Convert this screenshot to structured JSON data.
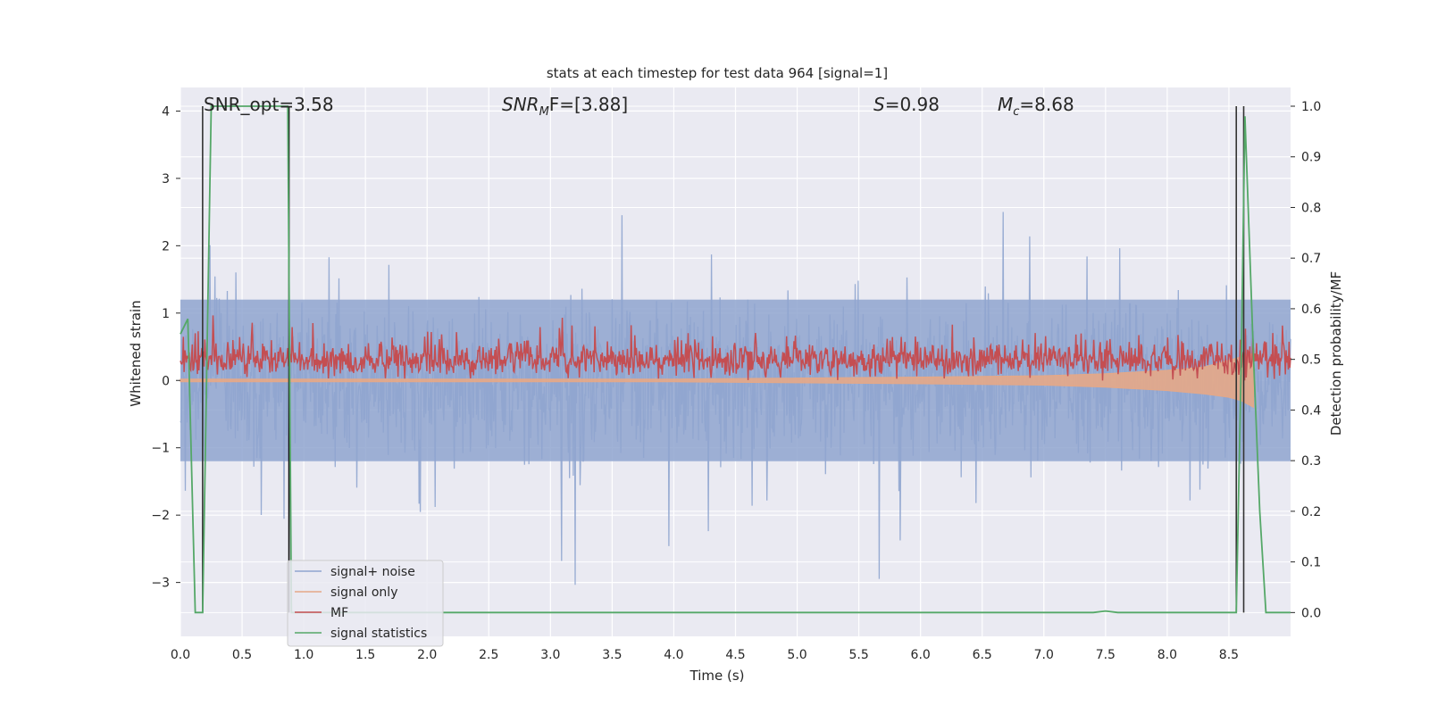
{
  "chart_data": {
    "type": "line",
    "title": "stats at each timestep for test data 964 [signal=1]",
    "xlabel": "Time (s)",
    "ylabel": "Whitened strain",
    "ylabel_right": "Detection probability/MF",
    "xlim": [
      0,
      9
    ],
    "ylim": [
      -3.8,
      4.35
    ],
    "ylim_right": [
      -0.047,
      1.037
    ],
    "x_ticks": [
      "0.0",
      "0.5",
      "1.0",
      "1.5",
      "2.0",
      "2.5",
      "3.0",
      "3.5",
      "4.0",
      "4.5",
      "5.0",
      "5.5",
      "6.0",
      "6.5",
      "7.0",
      "7.5",
      "8.0",
      "8.5"
    ],
    "y_ticks": [
      "4",
      "3",
      "2",
      "1",
      "0",
      "−1",
      "−2",
      "−3"
    ],
    "y_ticks_right": [
      "1.0",
      "0.9",
      "0.8",
      "0.7",
      "0.6",
      "0.5",
      "0.4",
      "0.3",
      "0.2",
      "0.1",
      "0.0"
    ],
    "grid": true,
    "legend_position": "lower-left",
    "annotations": [
      {
        "id": "snr-opt",
        "text": "SNR_opt=3.58"
      },
      {
        "id": "snr-mf",
        "text": "SNR",
        "sub": "M",
        "rest": "F=[3.88]"
      },
      {
        "id": "s-value",
        "text": "S",
        "rest": "=0.98"
      },
      {
        "id": "mc-value",
        "text": "M",
        "sub": "c",
        "rest": "=8.68"
      }
    ],
    "series": [
      {
        "name": "signal+ noise",
        "color": "#8fa5cf",
        "axis": "left",
        "description_range": [
          -3.5,
          4.0
        ]
      },
      {
        "name": "signal only",
        "color": "#e5a887",
        "axis": "left",
        "x": [
          0.0,
          2.0,
          4.0,
          6.0,
          7.0,
          7.5,
          8.0,
          8.3,
          8.5,
          8.6,
          8.7
        ],
        "y_low": [
          -0.02,
          -0.02,
          -0.02,
          -0.05,
          -0.07,
          -0.1,
          -0.15,
          -0.2,
          -0.25,
          -0.3,
          -0.4
        ],
        "y_high": [
          0.02,
          0.02,
          0.02,
          0.05,
          0.07,
          0.1,
          0.15,
          0.2,
          0.3,
          0.35,
          0.4
        ]
      },
      {
        "name": "MF",
        "color": "#c44e52",
        "axis": "left",
        "description_range": [
          0.0,
          1.0
        ]
      },
      {
        "name": "signal statistics",
        "color": "#55a868",
        "axis": "right",
        "x": [
          0.0,
          0.06,
          0.12,
          0.18,
          0.25,
          0.3,
          0.5,
          0.7,
          0.87,
          0.9,
          1.0,
          2.0,
          3.0,
          4.0,
          5.0,
          6.0,
          7.0,
          7.4,
          7.5,
          7.6,
          8.0,
          8.5,
          8.56,
          8.6,
          8.63,
          8.7,
          8.75,
          8.8,
          9.0
        ],
        "y": [
          0.55,
          0.58,
          0.0,
          0.0,
          1.0,
          1.0,
          1.0,
          1.0,
          1.0,
          0.0,
          0.0,
          0.0,
          0.0,
          0.0,
          0.0,
          0.0,
          0.0,
          0.0,
          0.003,
          0.0,
          0.0,
          0.0,
          0.0,
          0.5,
          0.98,
          0.5,
          0.2,
          0.0,
          0.0
        ]
      }
    ],
    "vertical_lines": [
      {
        "x": 0.18,
        "color": "#333333"
      },
      {
        "x": 0.88,
        "color": "#111111"
      },
      {
        "x": 8.56,
        "color": "#333333"
      },
      {
        "x": 8.62,
        "color": "#333333"
      }
    ]
  }
}
